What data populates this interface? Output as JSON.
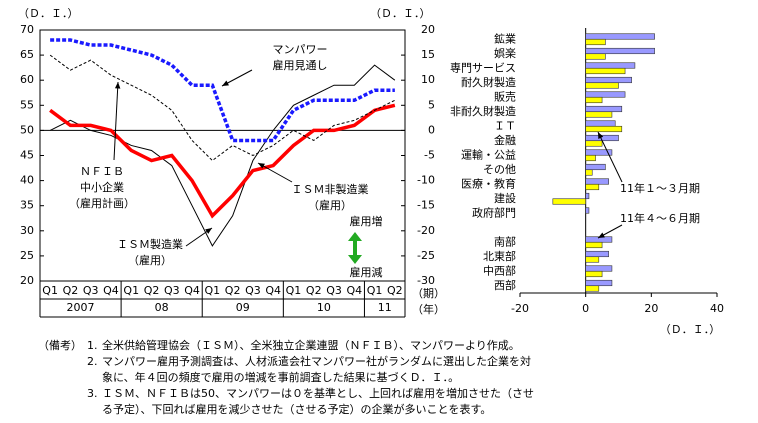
{
  "chart_data": [
    {
      "type": "line",
      "ylabel": "（Ｄ．Ｉ．）",
      "y2label": "（Ｄ．Ｉ．）",
      "xlabel": "（期）",
      "grouplabel": "（年）",
      "categories": [
        "Q1",
        "Q2",
        "Q3",
        "Q4",
        "Q1",
        "Q2",
        "Q3",
        "Q4",
        "Q1",
        "Q2",
        "Q3",
        "Q4",
        "Q1",
        "Q2",
        "Q3",
        "Q4",
        "Q1",
        "Q2"
      ],
      "year_groups": [
        {
          "label": "2007",
          "span": 4
        },
        {
          "label": "08",
          "span": 4
        },
        {
          "label": "09",
          "span": 4
        },
        {
          "label": "10",
          "span": 4
        },
        {
          "label": "11",
          "span": 2
        }
      ],
      "ylim": [
        20,
        70
      ],
      "yticks": [
        20,
        25,
        30,
        35,
        40,
        45,
        50,
        55,
        60,
        65,
        70
      ],
      "y2lim": [
        -30,
        20
      ],
      "y2ticks": [
        -30,
        -25,
        -20,
        -15,
        -10,
        -5,
        0,
        5,
        10,
        15,
        20
      ],
      "series": [
        {
          "name": "ＩＳＭ製造業\n（雇用）",
          "color": "#000000",
          "width": 1,
          "dash": false,
          "values": [
            50,
            52,
            50,
            49,
            47,
            46,
            43,
            35,
            27,
            33,
            44,
            50,
            55,
            57,
            59,
            59,
            63,
            60
          ]
        },
        {
          "name": "ＩＳＭ非製造業\n（雇用）",
          "color": "#ff0000",
          "width": 3.5,
          "dash": false,
          "values": [
            54,
            51,
            51,
            50,
            46,
            44,
            45,
            40,
            33,
            37,
            42,
            43,
            47,
            50,
            50,
            51,
            54,
            55
          ]
        },
        {
          "name": "ＮＦＩＢ\n中小企業\n（雇用計画）",
          "color": "#000000",
          "width": 1,
          "dash": true,
          "axis": "y2",
          "values": [
            15,
            12,
            14,
            11,
            9,
            7,
            4,
            -2,
            -6,
            -3,
            -5,
            -3,
            0,
            -2,
            1,
            2,
            4,
            6
          ]
        },
        {
          "name": "マンパワー\n雇用見通し",
          "color": "#1a1aff",
          "width": 3.5,
          "dash": true,
          "axis": "y2",
          "values": [
            18,
            18,
            17,
            17,
            16,
            15,
            13,
            9,
            9,
            -2,
            -2,
            -2,
            4,
            6,
            6,
            6,
            8,
            8
          ]
        }
      ],
      "annotations": [
        "雇用増",
        "雇用減"
      ]
    },
    {
      "type": "hbar",
      "xlabel": "（Ｄ．Ｉ．）",
      "categories": [
        "鉱業",
        "娯楽",
        "専門サービス",
        "耐久財製造",
        "販売",
        "非耐久財製造",
        "ＩＴ",
        "金融",
        "運輸・公益",
        "その他",
        "医療・教育",
        "建設",
        "政府部門",
        null,
        "南部",
        "北東部",
        "中西部",
        "西部"
      ],
      "xlim": [
        -20,
        40
      ],
      "xticks": [
        -20,
        0,
        20,
        40
      ],
      "series": [
        {
          "name": "11年４～６月期",
          "color": "#9999ff",
          "values": [
            21,
            21,
            15,
            14,
            12,
            11,
            9,
            10,
            8,
            6,
            7,
            1,
            1,
            null,
            8,
            7,
            8,
            8
          ]
        },
        {
          "name": "11年１～３月期",
          "color": "#ffff00",
          "values": [
            6,
            6,
            12,
            10,
            5,
            8,
            11,
            5,
            3,
            2,
            4,
            -10,
            0,
            null,
            5,
            4,
            5,
            4
          ]
        }
      ]
    }
  ],
  "notes": {
    "label": "（備考）",
    "items": [
      {
        "num": "1.",
        "lines": [
          "全米供給管理協会（ＩＳＭ）、全米独立企業連盟（ＮＦＩＢ）、マンパワーより作成。"
        ]
      },
      {
        "num": "2.",
        "lines": [
          "マンパワー雇用予測調査は、人材派遣会社マンパワー社がランダムに選出した企業を対",
          "象に、年４回の頻度で雇用の増減を事前調査した結果に基づくＤ．Ｉ．。"
        ]
      },
      {
        "num": "3.",
        "lines": [
          "ＩＳＭ、ＮＦＩＢは50、マンパワーは０を基準とし、上回れば雇用を増加させた（させ",
          "る予定）、下回れば雇用を減少させた（させる予定）の企業が多いことを表す。"
        ]
      }
    ]
  }
}
